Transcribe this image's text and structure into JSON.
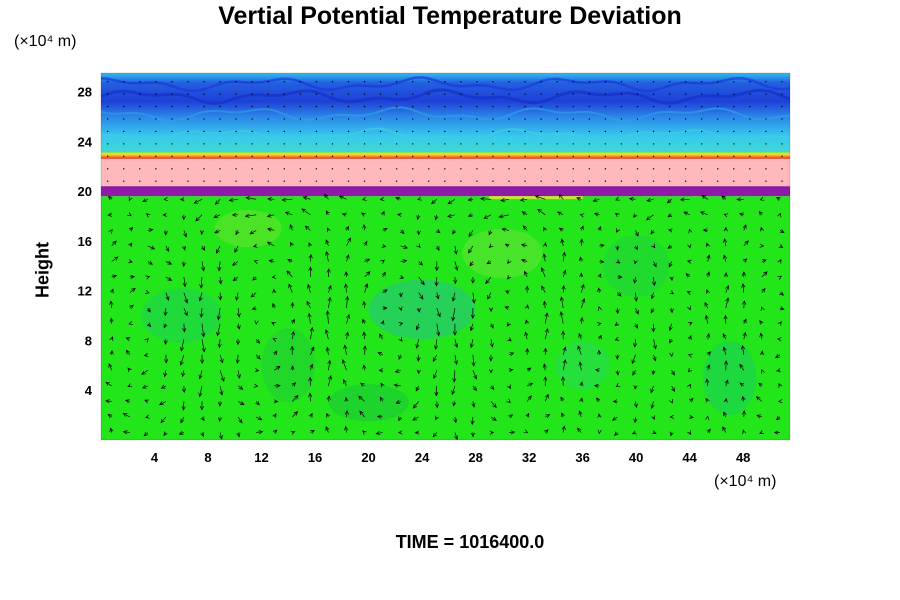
{
  "chart_data": {
    "type": "heatmap",
    "title": "Vertial Potential Temperature Deviation",
    "ylabel": "Height",
    "y_unit": "(×10⁴ m)",
    "x_unit": "(×10⁴ m)",
    "xlim": [
      0,
      51.5
    ],
    "ylim": [
      0,
      29.5
    ],
    "x_ticks": [
      4,
      8,
      12,
      16,
      20,
      24,
      28,
      32,
      36,
      40,
      44,
      48
    ],
    "y_ticks": [
      4,
      8,
      12,
      16,
      20,
      24,
      28
    ],
    "time_label": "TIME = 1016400.0",
    "overlay": "wind vectors",
    "colors": {
      "background_field": "#22e61a",
      "cyan_band": "#37c8ee",
      "blue_band": "#1e40d8",
      "pink_layer": "#ffb9bc",
      "purple_layer": "#8e1aa6",
      "red_edge": "#e3171a",
      "yellow_edge": "#f3e33a"
    },
    "layers": [
      {
        "name": "lower field",
        "y_range": [
          0,
          19.5
        ],
        "color": "#22e61a"
      },
      {
        "name": "purple layer",
        "y_range": [
          19.6,
          20.4
        ],
        "color": "#8e1aa6"
      },
      {
        "name": "pink layer",
        "y_range": [
          20.4,
          22.6
        ],
        "color": "#ffb9bc"
      },
      {
        "name": "red edge",
        "y_range": [
          22.6,
          23.0
        ],
        "color": "#e3171a"
      },
      {
        "name": "upper cyan",
        "y_range": [
          23.0,
          26.0
        ],
        "color": "#37c8ee"
      },
      {
        "name": "upper blue",
        "y_range": [
          26.0,
          29.5
        ],
        "color": "#1e40d8"
      }
    ]
  }
}
